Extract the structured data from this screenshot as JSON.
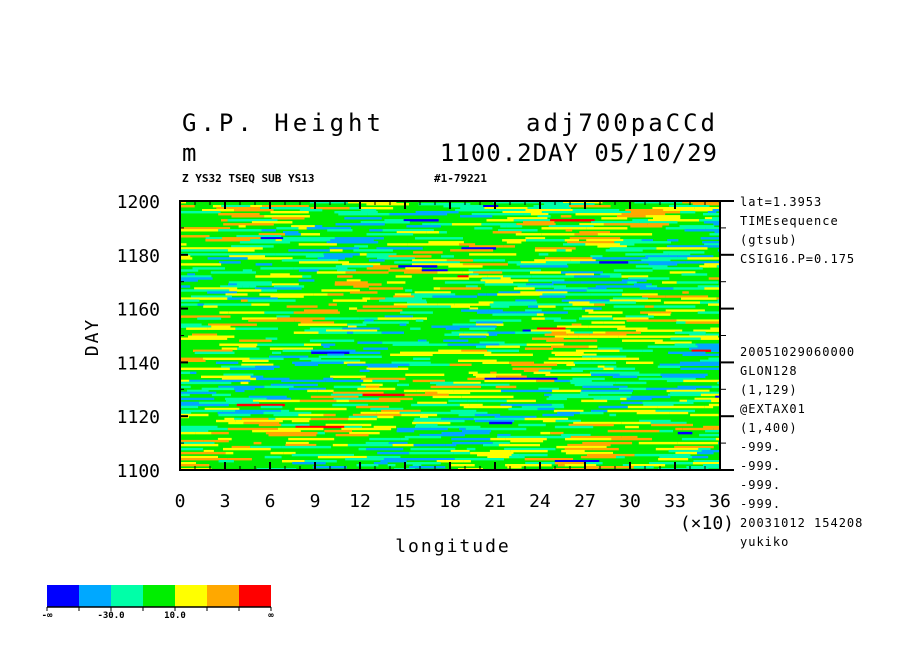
{
  "chart_data": {
    "type": "heatmap",
    "title": {
      "variable": "G.P. Height",
      "units": "m",
      "file": "adj700paCCd",
      "time": "1100.2DAY 05/10/29"
    },
    "subtitle": {
      "left": "Z YS32 TSEQ SUB YS13",
      "right": "#1-79221"
    },
    "xlabel": "longitude",
    "x_multiplier": "(×10)",
    "ylabel": "DAY",
    "xlim": [
      0,
      36
    ],
    "ylim": [
      1100,
      1200
    ],
    "x_ticks": [
      "0",
      "3",
      "6",
      "9",
      "12",
      "15",
      "18",
      "21",
      "24",
      "27",
      "30",
      "33",
      "36"
    ],
    "y_ticks": [
      "1100",
      "1120",
      "1140",
      "1160",
      "1180",
      "1200"
    ],
    "colorbar": {
      "colors": [
        "#0000ff",
        "#00a8ff",
        "#00ffa8",
        "#00ee00",
        "#ffff00",
        "#ffa800",
        "#ff0000"
      ],
      "labels": [
        "-∞",
        "-30.0",
        "10.0",
        "∞"
      ]
    },
    "side_info_top": [
      "lat=1.3953",
      "TIMEsequence",
      "(gtsub)",
      "CSIG16.P=0.175"
    ],
    "side_info_bottom": [
      "20051029060000",
      "GLON128",
      "(1,129)",
      "@EXTAX01",
      "(1,400)",
      "-999.",
      "-999.",
      "-999.",
      "-999.",
      "20031012 154208",
      "yukiko"
    ]
  }
}
